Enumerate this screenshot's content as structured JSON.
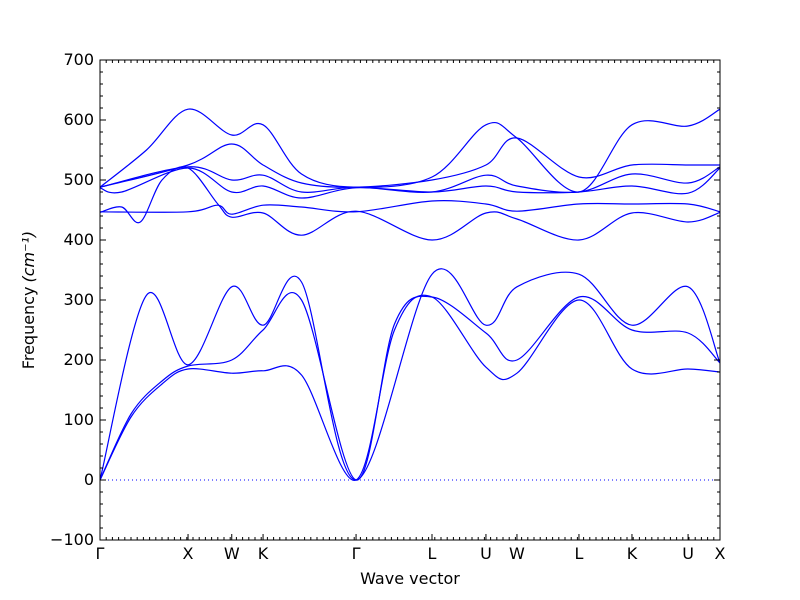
{
  "chart_data": {
    "type": "line",
    "title": "",
    "xlabel": "Wave vector",
    "ylabel": "Frequency",
    "ylabel_unit_math": "(cm⁻¹)",
    "ylim": [
      -100,
      700
    ],
    "xlim": [
      0,
      20
    ],
    "ytick_labels": [
      "−100",
      "0",
      "100",
      "200",
      "300",
      "400",
      "500",
      "600",
      "700"
    ],
    "ytick_values": [
      -100,
      0,
      100,
      200,
      300,
      400,
      500,
      600,
      700
    ],
    "xticks": [
      {
        "label": "Γ",
        "x": 0
      },
      {
        "label": "X",
        "x": 2.84
      },
      {
        "label": "W",
        "x": 4.25
      },
      {
        "label": "K",
        "x": 5.26
      },
      {
        "label": "Γ",
        "x": 8.26
      },
      {
        "label": "L",
        "x": 10.71
      },
      {
        "label": "U",
        "x": 12.45
      },
      {
        "label": "W",
        "x": 13.45
      },
      {
        "label": "L",
        "x": 15.45
      },
      {
        "label": "K",
        "x": 17.16
      },
      {
        "label": "U",
        "x": 18.97
      },
      {
        "label": "X",
        "x": 20
      }
    ],
    "zero_line": {
      "y": 0,
      "style": "dotted"
    },
    "line_color": "#0000ff",
    "series": [
      {
        "x": [
          0,
          1.0,
          2.0,
          2.84,
          4.25,
          5.26,
          6.5,
          8.26,
          9.5,
          10.71,
          12.45,
          13.45,
          15.45,
          17.16,
          18.97,
          20
        ],
        "y": [
          0,
          105,
          160,
          185,
          178,
          182,
          175,
          0,
          250,
          305,
          188,
          178,
          300,
          185,
          185,
          180
        ]
      },
      {
        "x": [
          0,
          1.0,
          2.0,
          2.84,
          4.25,
          5.26,
          6.5,
          8.26,
          9.5,
          10.71,
          12.45,
          13.45,
          15.45,
          17.16,
          18.97,
          20
        ],
        "y": [
          0,
          110,
          165,
          190,
          200,
          250,
          300,
          0,
          260,
          305,
          245,
          200,
          305,
          250,
          245,
          195
        ]
      },
      {
        "x": [
          0,
          1.5,
          2.84,
          4.25,
          5.26,
          6.5,
          8.26,
          10.71,
          12.45,
          13.45,
          15.45,
          17.16,
          18.97,
          20
        ],
        "y": [
          0,
          308,
          192,
          322,
          258,
          330,
          0,
          343,
          258,
          322,
          343,
          258,
          322,
          195
        ]
      },
      {
        "x": [
          0,
          0.7,
          1.3,
          2.0,
          2.84,
          3.8,
          4.25,
          5.26,
          6.5,
          8.26,
          10.71,
          12.45,
          13.45,
          15.45,
          17.16,
          18.97,
          20
        ],
        "y": [
          446,
          455,
          430,
          500,
          520,
          460,
          438,
          445,
          408,
          448,
          400,
          445,
          435,
          400,
          445,
          430,
          446
        ]
      },
      {
        "x": [
          0,
          2.84,
          3.8,
          4.25,
          5.26,
          6.5,
          8.26,
          10.71,
          12.45,
          13.45,
          15.45,
          17.16,
          18.97,
          20
        ],
        "y": [
          447,
          447,
          458,
          443,
          458,
          455,
          447,
          465,
          460,
          448,
          460,
          460,
          460,
          447
        ]
      },
      {
        "x": [
          0,
          0.7,
          2.84,
          4.25,
          5.26,
          6.5,
          8.26,
          10.71,
          12.45,
          13.45,
          15.45,
          17.16,
          18.97,
          20
        ],
        "y": [
          487,
          480,
          520,
          480,
          490,
          470,
          487,
          480,
          490,
          480,
          480,
          490,
          478,
          520
        ]
      },
      {
        "x": [
          0,
          2.84,
          4.25,
          5.26,
          6.5,
          8.26,
          10.71,
          12.45,
          13.45,
          15.45,
          17.16,
          18.97,
          20
        ],
        "y": [
          488,
          522,
          500,
          508,
          480,
          488,
          480,
          508,
          490,
          480,
          510,
          495,
          522
        ]
      },
      {
        "x": [
          0,
          2.84,
          4.25,
          5.26,
          6.5,
          8.26,
          10.71,
          12.45,
          13.45,
          15.45,
          17.16,
          18.97,
          20
        ],
        "y": [
          488,
          525,
          560,
          525,
          495,
          488,
          500,
          525,
          570,
          505,
          525,
          525,
          525
        ]
      },
      {
        "x": [
          0,
          1.5,
          2.84,
          4.25,
          5.26,
          6.5,
          8.26,
          10.71,
          12.45,
          13.45,
          15.45,
          17.16,
          18.97,
          20
        ],
        "y": [
          488,
          550,
          618,
          575,
          592,
          510,
          488,
          505,
          592,
          570,
          480,
          592,
          590,
          618
        ]
      }
    ]
  }
}
